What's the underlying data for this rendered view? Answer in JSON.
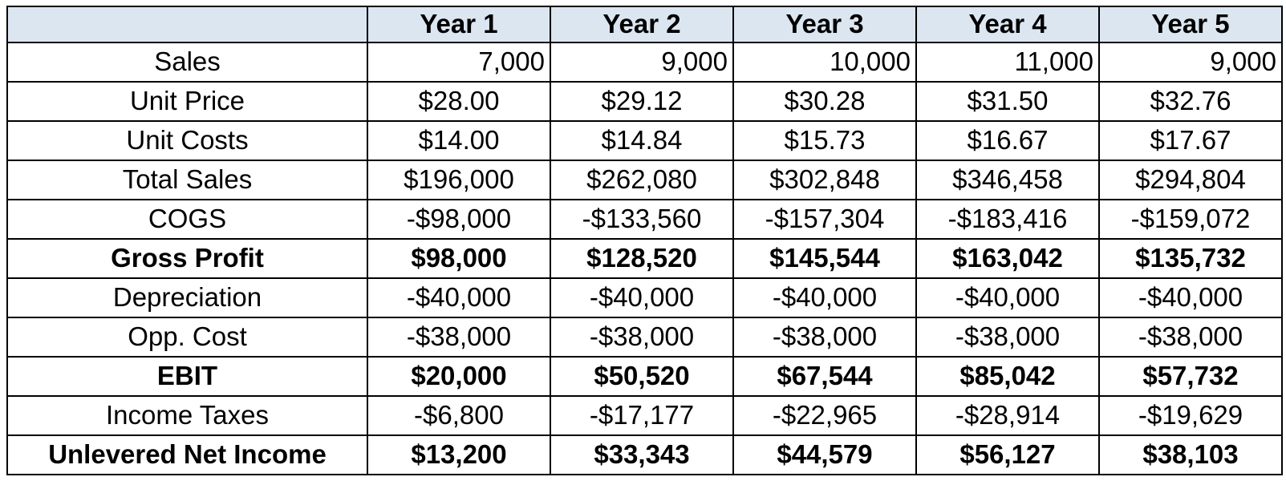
{
  "table": {
    "corner_label": "",
    "header": {
      "columns": [
        "Year 1",
        "Year 2",
        "Year 3",
        "Year 4",
        "Year 5"
      ]
    },
    "rows": [
      {
        "label": "Sales",
        "values": [
          "7,000",
          "9,000",
          "10,000",
          "11,000",
          "9,000"
        ]
      },
      {
        "label": "Unit Price",
        "values": [
          "$28.00",
          "$29.12",
          "$30.28",
          "$31.50",
          "$32.76"
        ]
      },
      {
        "label": "Unit Costs",
        "values": [
          "$14.00",
          "$14.84",
          "$15.73",
          "$16.67",
          "$17.67"
        ]
      },
      {
        "label": "Total Sales",
        "values": [
          "$196,000",
          "$262,080",
          "$302,848",
          "$346,458",
          "$294,804"
        ]
      },
      {
        "label": "COGS",
        "values": [
          "-$98,000",
          "-$133,560",
          "-$157,304",
          "-$183,416",
          "-$159,072"
        ]
      },
      {
        "label": "Gross Profit",
        "values": [
          "$98,000",
          "$128,520",
          "$145,544",
          "$163,042",
          "$135,732"
        ]
      },
      {
        "label": "Depreciation",
        "values": [
          "-$40,000",
          "-$40,000",
          "-$40,000",
          "-$40,000",
          "-$40,000"
        ]
      },
      {
        "label": "Opp. Cost",
        "values": [
          "-$38,000",
          "-$38,000",
          "-$38,000",
          "-$38,000",
          "-$38,000"
        ]
      },
      {
        "label": "EBIT",
        "values": [
          "$20,000",
          "$50,520",
          "$67,544",
          "$85,042",
          "$57,732"
        ]
      },
      {
        "label": "Income Taxes",
        "values": [
          "-$6,800",
          "-$17,177",
          "-$22,965",
          "-$28,914",
          "-$19,629"
        ]
      },
      {
        "label": "Unlevered Net Income",
        "values": [
          "$13,200",
          "$33,343",
          "$44,579",
          "$56,127",
          "$38,103"
        ]
      }
    ],
    "colors": {
      "header_bg": "#dce6f1",
      "border": "#000000",
      "text": "#000000",
      "background": "#ffffff"
    }
  }
}
